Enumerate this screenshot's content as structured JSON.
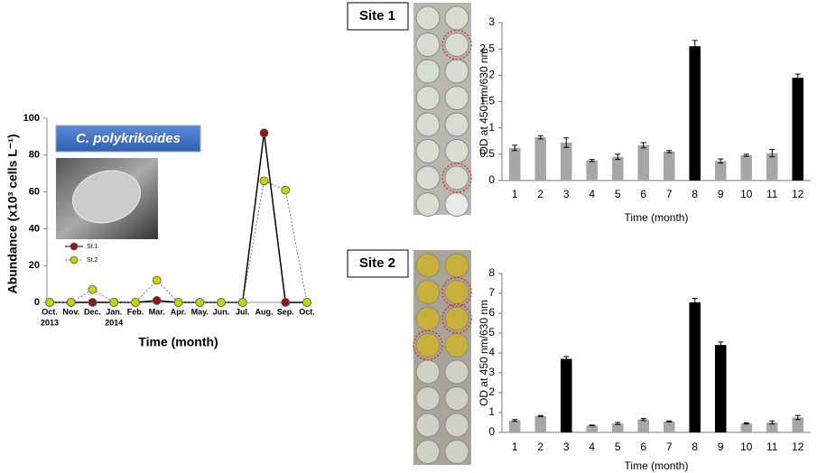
{
  "chart_data": [
    {
      "type": "line",
      "title": "C. polykrikoides",
      "ylabel": "Abundance (x10³ cells L⁻¹)",
      "xlabel": "Time (month)",
      "categories": [
        "Oct.",
        "Nov.",
        "Dec.",
        "Jan.",
        "Feb.",
        "Mar.",
        "Apr.",
        "May.",
        "Jun.",
        "Jul.",
        "Aug.",
        "Sep.",
        "Oct."
      ],
      "category_years": [
        "2013",
        null,
        null,
        "2014",
        null,
        null,
        null,
        null,
        null,
        null,
        null,
        null,
        null
      ],
      "ylim": [
        0,
        100
      ],
      "yticks": [
        0,
        20,
        40,
        60,
        80,
        100
      ],
      "series": [
        {
          "name": "St.1",
          "color": "#8b1a1a",
          "line_color": "#000000",
          "line_style": "solid",
          "values": [
            0,
            0,
            0,
            0,
            0,
            1,
            0,
            0,
            0,
            0,
            92,
            0,
            0
          ]
        },
        {
          "name": "St.2",
          "color": "#c8d400",
          "line_color": "#777777",
          "line_style": "dotted",
          "values": [
            0,
            0,
            7,
            0,
            0,
            12,
            0,
            0,
            0,
            0,
            66,
            61,
            0
          ]
        }
      ]
    },
    {
      "type": "bar",
      "title": "Site 1",
      "ylabel": "OD at 450 nm/630 nm",
      "xlabel": "Time (month)",
      "categories": [
        "1",
        "2",
        "3",
        "4",
        "5",
        "6",
        "7",
        "8",
        "9",
        "10",
        "11",
        "12"
      ],
      "values": [
        0.62,
        0.82,
        0.72,
        0.38,
        0.45,
        0.67,
        0.55,
        2.55,
        0.37,
        0.48,
        0.52,
        1.95
      ],
      "errors": [
        0.05,
        0.03,
        0.09,
        0.02,
        0.05,
        0.05,
        0.02,
        0.11,
        0.04,
        0.02,
        0.07,
        0.07
      ],
      "colors": [
        "#a6a6a6",
        "#a6a6a6",
        "#a6a6a6",
        "#a6a6a6",
        "#a6a6a6",
        "#a6a6a6",
        "#a6a6a6",
        "#000000",
        "#a6a6a6",
        "#a6a6a6",
        "#a6a6a6",
        "#000000"
      ],
      "ylim": [
        0,
        3
      ],
      "yticks": [
        0,
        0.5,
        1,
        1.5,
        2,
        2.5,
        3
      ]
    },
    {
      "type": "bar",
      "title": "Site 2",
      "ylabel": "OD at 450 nm/630 nm",
      "xlabel": "Time (month)",
      "categories": [
        "1",
        "2",
        "3",
        "4",
        "5",
        "6",
        "7",
        "8",
        "9",
        "10",
        "11",
        "12"
      ],
      "values": [
        0.6,
        0.82,
        3.7,
        0.35,
        0.45,
        0.65,
        0.55,
        6.55,
        4.4,
        0.45,
        0.5,
        0.75
      ],
      "errors": [
        0.05,
        0.03,
        0.12,
        0.02,
        0.05,
        0.05,
        0.03,
        0.2,
        0.15,
        0.03,
        0.08,
        0.1
      ],
      "colors": [
        "#a6a6a6",
        "#a6a6a6",
        "#000000",
        "#a6a6a6",
        "#a6a6a6",
        "#a6a6a6",
        "#a6a6a6",
        "#000000",
        "#000000",
        "#a6a6a6",
        "#a6a6a6",
        "#a6a6a6"
      ],
      "ylim": [
        0,
        8
      ],
      "yticks": [
        0,
        1,
        2,
        3,
        4,
        5,
        6,
        7,
        8
      ]
    }
  ]
}
